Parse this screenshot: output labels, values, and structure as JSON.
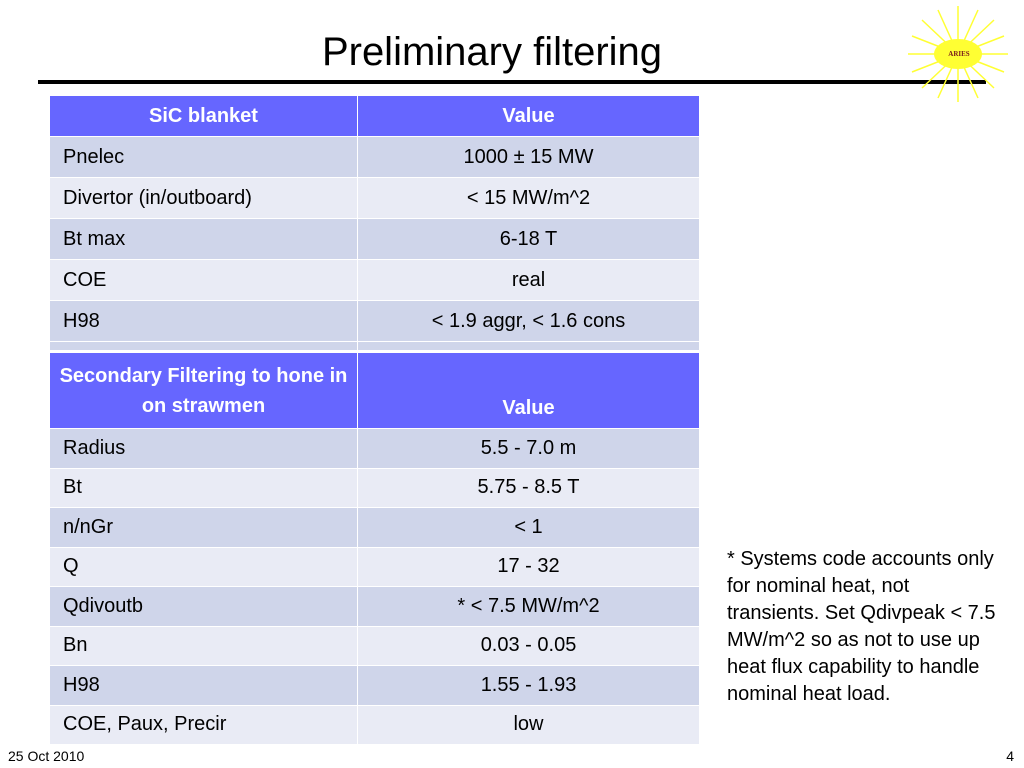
{
  "slide": {
    "title": "Preliminary filtering",
    "logo_text": "ARIES",
    "footer_date": "25 Oct 2010",
    "page_number": "4"
  },
  "table1": {
    "headers": [
      "SiC blanket",
      "Value"
    ],
    "rows": [
      [
        "Pnelec",
        "1000 ± 15 MW"
      ],
      [
        "Divertor (in/outboard)",
        "< 15 MW/m^2"
      ],
      [
        "Bt max",
        "6-18 T"
      ],
      [
        "COE",
        "real"
      ],
      [
        "H98",
        "< 1.9 aggr,  < 1.6 cons"
      ]
    ]
  },
  "table2": {
    "headers": [
      "Secondary Filtering to hone in on strawmen",
      "Value"
    ],
    "rows": [
      [
        "Radius",
        "5.5 - 7.0 m"
      ],
      [
        "Bt",
        "5.75 - 8.5 T"
      ],
      [
        "n/nGr",
        "< 1"
      ],
      [
        "Q",
        "17 - 32"
      ],
      [
        "Qdivoutb",
        "* < 7.5 MW/m^2"
      ],
      [
        "Bn",
        "0.03 - 0.05"
      ],
      [
        "H98",
        "1.55 - 1.93"
      ],
      [
        "COE, Paux, Precir",
        "low"
      ]
    ]
  },
  "note": "* Systems code accounts only for nominal heat, not transients. Set Qdivpeak < 7.5 MW/m^2 so as not to use up heat flux capability to handle nominal heat load.",
  "colors": {
    "header_bg": "#6666ff",
    "row_odd": "#cfd5ea",
    "row_even": "#e9ebf5",
    "logo_sun": "#ffff33"
  }
}
